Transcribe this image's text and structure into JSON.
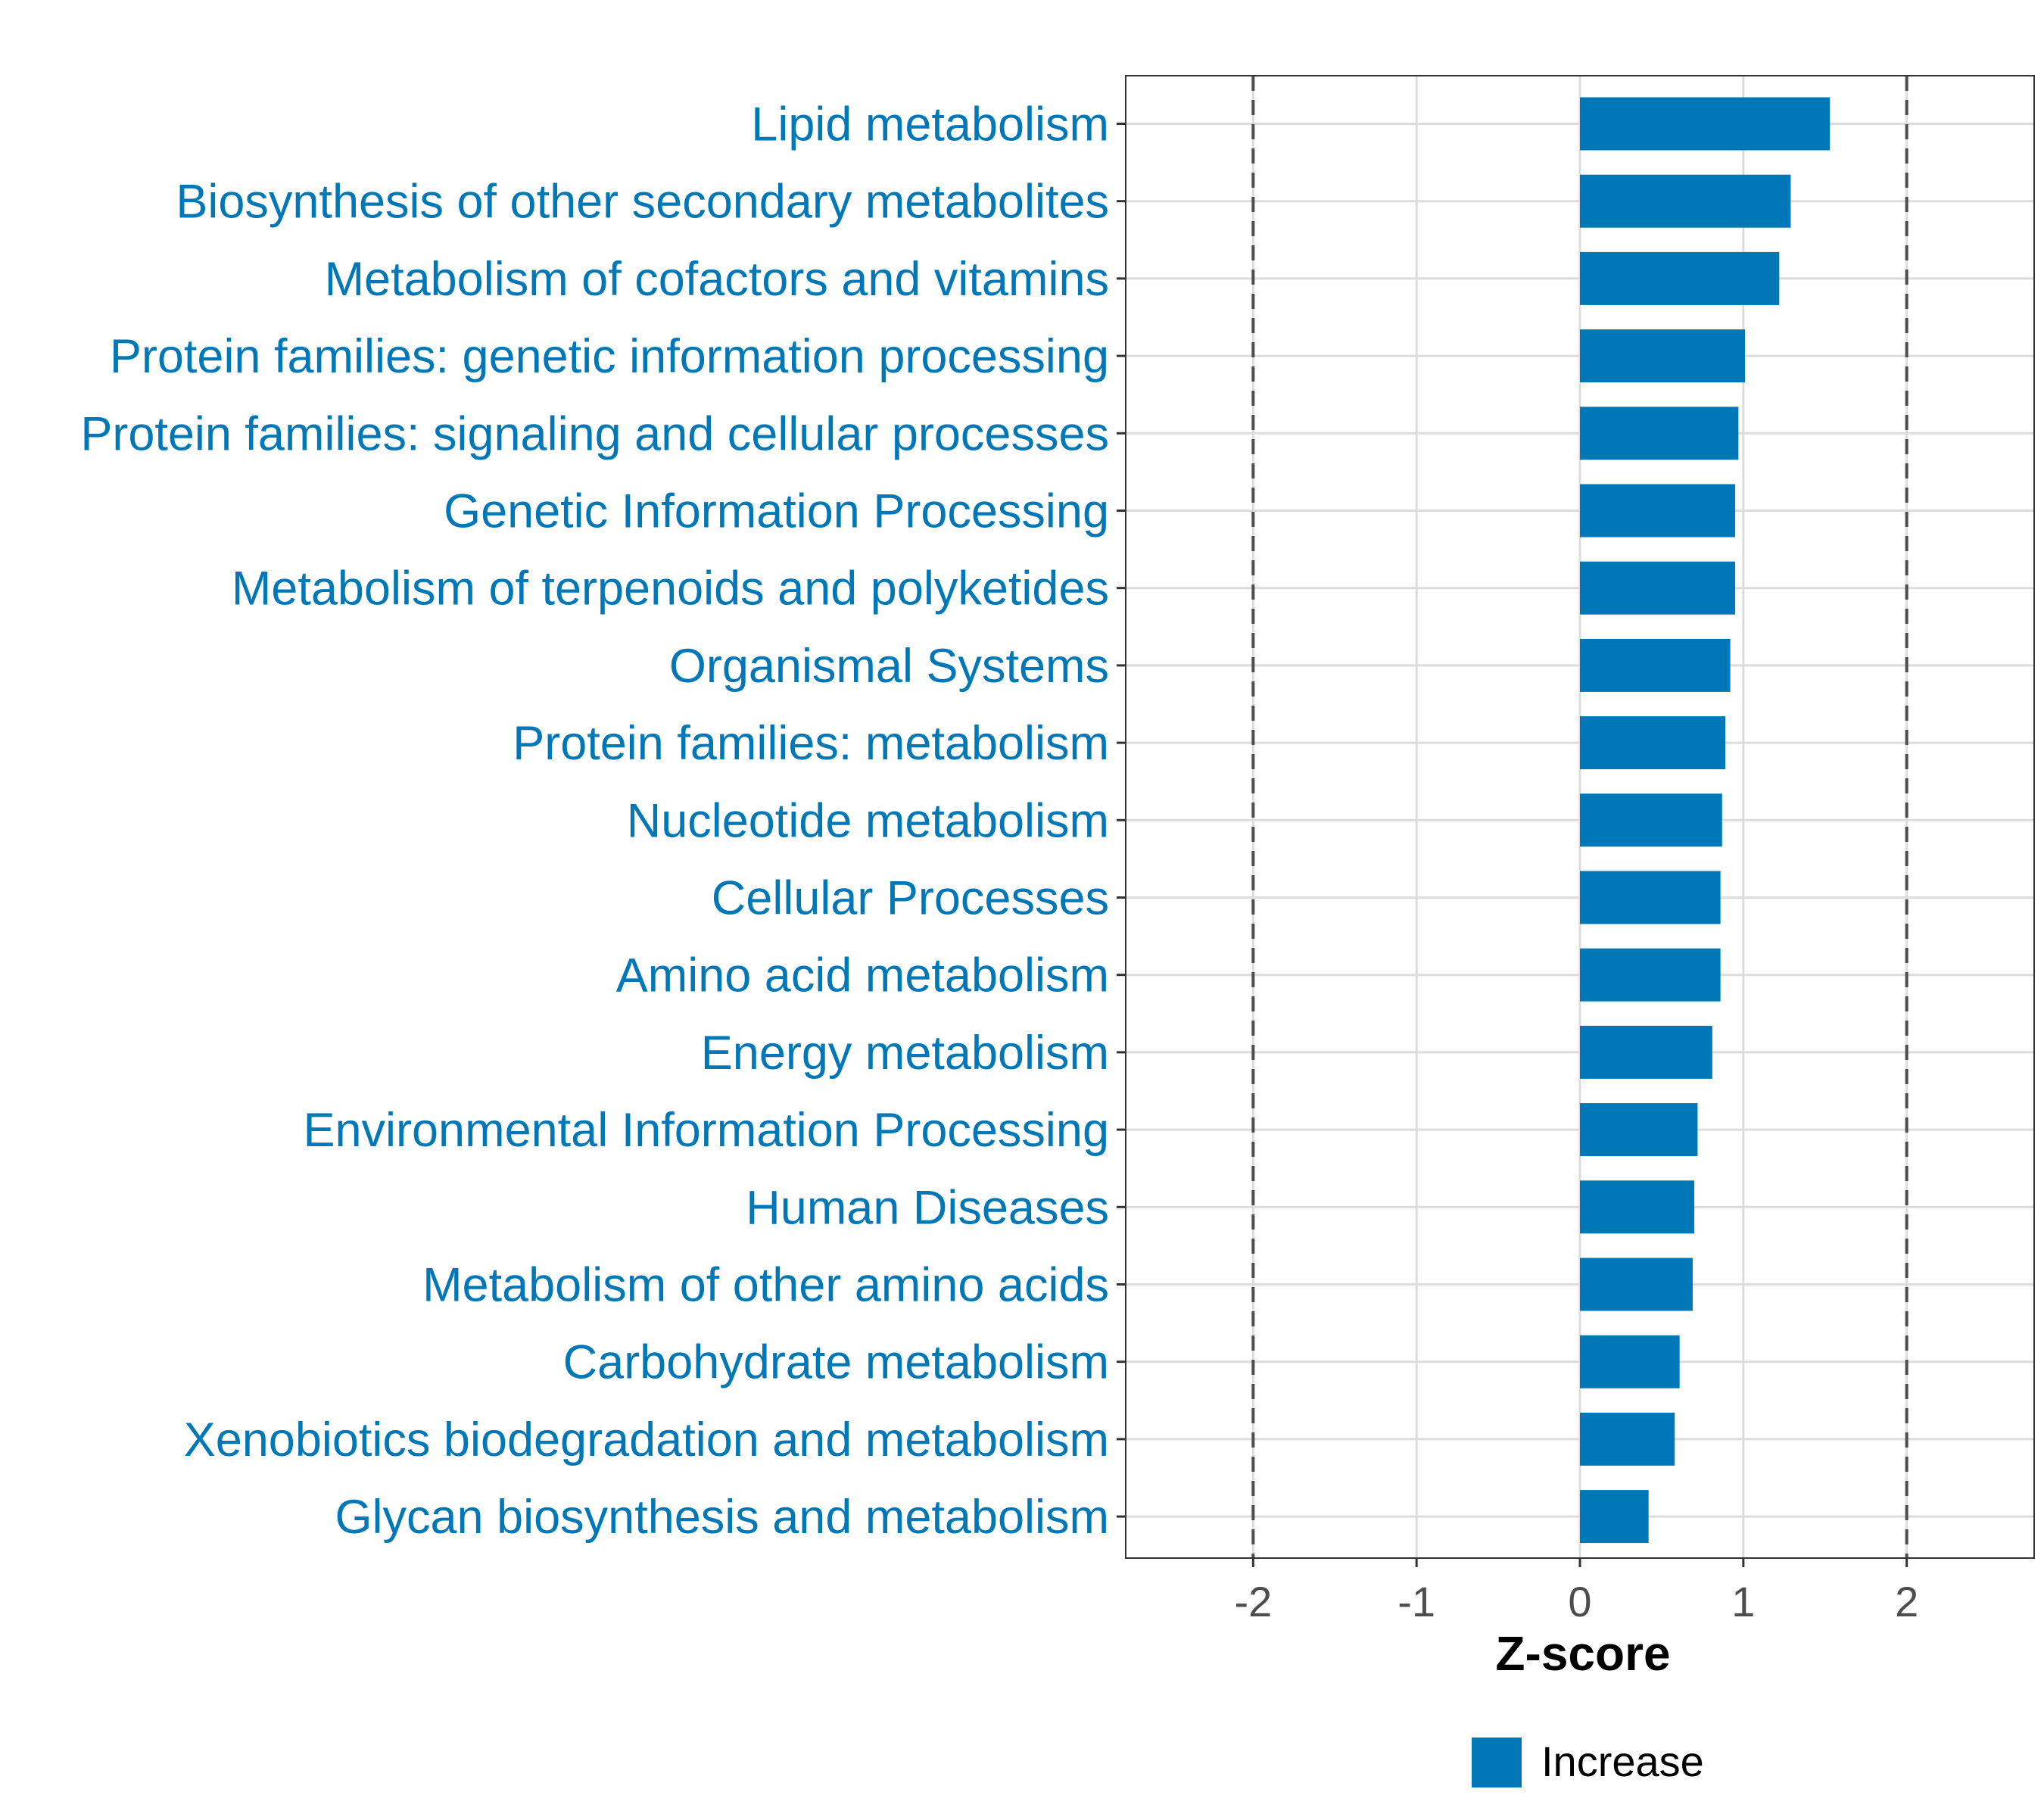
{
  "chart_data": {
    "type": "bar",
    "orientation": "horizontal",
    "title": "",
    "xlabel": "Z-score",
    "ylabel": "",
    "xlim": [
      -2.78,
      2.78
    ],
    "xticks": [
      -2,
      -1,
      0,
      1,
      2
    ],
    "xtick_labels": [
      "-2",
      "-1",
      "0",
      "1",
      "2"
    ],
    "reference_lines": [
      -2,
      2
    ],
    "grid": true,
    "legend_position": "bottom",
    "bar_color": "#0077b6",
    "label_color": "#0077b6",
    "categories": [
      "Lipid metabolism",
      "Biosynthesis of other secondary metabolites",
      "Metabolism of cofactors and vitamins",
      "Protein families: genetic information processing",
      "Protein families: signaling and cellular processes",
      "Genetic Information Processing",
      "Metabolism of terpenoids and polyketides",
      "Organismal Systems",
      "Protein families: metabolism",
      "Nucleotide metabolism",
      "Cellular Processes",
      "Amino acid metabolism",
      "Energy metabolism",
      "Environmental Information Processing",
      "Human Diseases",
      "Metabolism of other amino acids",
      "Carbohydrate metabolism",
      "Xenobiotics biodegradation and metabolism",
      "Glycan biosynthesis and metabolism"
    ],
    "series": [
      {
        "name": "Increase",
        "values": [
          1.53,
          1.29,
          1.22,
          1.01,
          0.97,
          0.95,
          0.95,
          0.92,
          0.89,
          0.87,
          0.86,
          0.86,
          0.81,
          0.72,
          0.7,
          0.69,
          0.61,
          0.58,
          0.42
        ]
      }
    ],
    "legend": [
      {
        "label": "Increase",
        "color": "#0077b6"
      }
    ]
  }
}
